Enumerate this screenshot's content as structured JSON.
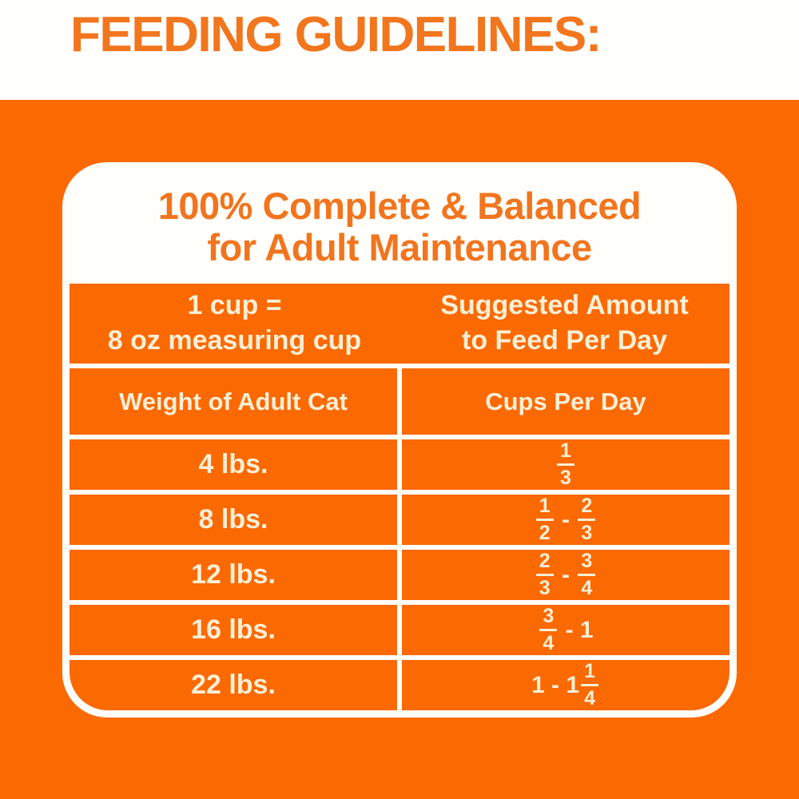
{
  "page_title": "FEEDING GUIDELINES:",
  "colors": {
    "panel_orange": "#FB6903",
    "title_orange": "#F2761D",
    "heading_orange": "#F1751E",
    "cell_text_cream": "#F9EFD5",
    "card_white": "#FFFEFA"
  },
  "card": {
    "heading_line1": "100% Complete & Balanced",
    "heading_line2": "for Adult Maintenance",
    "table": {
      "merged_header": {
        "left_line1": "1 cup =",
        "left_line2": "8 oz measuring cup",
        "right_line1": "Suggested Amount",
        "right_line2": "to Feed Per Day"
      },
      "column_headers": [
        "Weight of Adult Cat",
        "Cups Per Day"
      ],
      "rows": [
        {
          "weight": "4 lbs.",
          "amount": [
            {
              "frac": [
                "1",
                "3"
              ]
            }
          ]
        },
        {
          "weight": "8 lbs.",
          "amount": [
            {
              "frac": [
                "1",
                "2"
              ]
            },
            {
              "text": " - "
            },
            {
              "frac": [
                "2",
                "3"
              ]
            }
          ]
        },
        {
          "weight": "12 lbs.",
          "amount": [
            {
              "frac": [
                "2",
                "3"
              ]
            },
            {
              "text": " - "
            },
            {
              "frac": [
                "3",
                "4"
              ]
            }
          ]
        },
        {
          "weight": "16 lbs.",
          "amount": [
            {
              "frac": [
                "3",
                "4"
              ]
            },
            {
              "text": " - 1"
            }
          ]
        },
        {
          "weight": "22 lbs.",
          "amount": [
            {
              "text": "1 - 1"
            },
            {
              "frac": [
                "1",
                "4"
              ]
            }
          ]
        }
      ]
    }
  }
}
